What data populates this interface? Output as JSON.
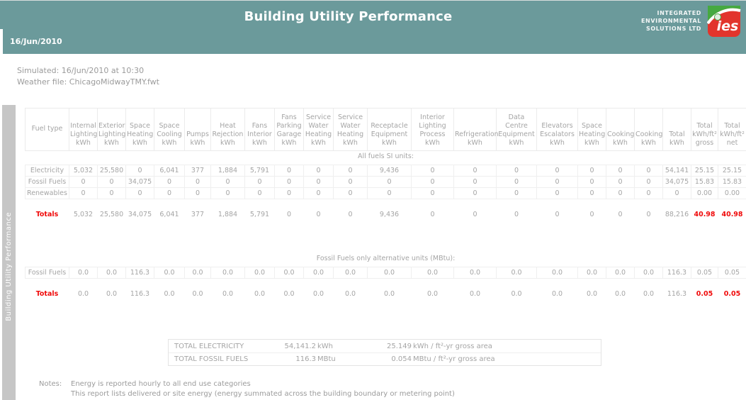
{
  "header": {
    "title": "Building Utility Performance",
    "date": "16/Jun/2010",
    "logo": {
      "company_lines": [
        "INTEGRATED",
        "ENVIRONMENTAL",
        "SOLUTIONS LTD"
      ],
      "mark_text": "ies"
    }
  },
  "sidebar": {
    "tab_label": "Building Utility Performance"
  },
  "meta": {
    "simulated": "Simulated: 16/Jun/2010 at 10:30",
    "weather_file": "Weather file: ChicagoMidwayTMY.fwt"
  },
  "table": {
    "columns": [
      "Fuel type",
      "Internal\nLighting\nkWh",
      "Exterior\nLighting\nkWh",
      "Space\nHeating\nkWh",
      "Space\nCooling\nkWh",
      "Pumps\nkWh",
      "Heat\nRejection\nkWh",
      "Fans\nInterior\nkWh",
      "Fans\nParking\nGarage\nkWh",
      "Service\nWater\nHeating\nkWh",
      "Service\nWater\nHeating\nkWh",
      "Receptacle\nEquipment\nkWh",
      "Interior\nLighting\nProcess\nkWh",
      "Refrigeration\nkWh",
      "Data\nCentre\nEquipment\nkWh",
      "Elevators\nEscalators\nkWh",
      "Space\nHeating\nkWh",
      "Cooking\nkWh",
      "Cooking\nkWh",
      "Total\nkWh",
      "Total\nkWh/ft²\ngross",
      "Total\nkWh/ft²\nnet"
    ],
    "sections": [
      {
        "label": "All fuels SI units:",
        "rows": [
          {
            "label": "Electricity",
            "values": [
              "5,032",
              "25,580",
              "0",
              "6,041",
              "377",
              "1,884",
              "5,791",
              "0",
              "0",
              "0",
              "9,436",
              "0",
              "0",
              "0",
              "0",
              "0",
              "0",
              "0",
              "54,141",
              "25.15",
              "25.15"
            ]
          },
          {
            "label": "Fossil Fuels",
            "values": [
              "0",
              "0",
              "34,075",
              "0",
              "0",
              "0",
              "0",
              "0",
              "0",
              "0",
              "0",
              "0",
              "0",
              "0",
              "0",
              "0",
              "0",
              "0",
              "34,075",
              "15.83",
              "15.83"
            ]
          },
          {
            "label": "Renewables",
            "values": [
              "0",
              "0",
              "0",
              "0",
              "0",
              "0",
              "0",
              "0",
              "0",
              "0",
              "0",
              "0",
              "0",
              "0",
              "0",
              "0",
              "0",
              "0",
              "0",
              "0.00",
              "0.00"
            ]
          }
        ],
        "totals": {
          "label": "Totals",
          "values": [
            "5,032",
            "25,580",
            "34,075",
            "6,041",
            "377",
            "1,884",
            "5,791",
            "0",
            "0",
            "0",
            "9,436",
            "0",
            "0",
            "0",
            "0",
            "0",
            "0",
            "0",
            "88,216",
            "40.98",
            "40.98"
          ],
          "red_value_indices": [
            19,
            20
          ]
        }
      },
      {
        "label": "Fossil Fuels only alternative units (MBtu):",
        "rows": [
          {
            "label": "Fossil Fuels",
            "values": [
              "0.0",
              "0.0",
              "116.3",
              "0.0",
              "0.0",
              "0.0",
              "0.0",
              "0.0",
              "0.0",
              "0.0",
              "0.0",
              "0.0",
              "0.0",
              "0.0",
              "0.0",
              "0.0",
              "0.0",
              "0.0",
              "116.3",
              "0.05",
              "0.05"
            ]
          }
        ],
        "totals": {
          "label": "Totals",
          "values": [
            "0.0",
            "0.0",
            "116.3",
            "0.0",
            "0.0",
            "0.0",
            "0.0",
            "0.0",
            "0.0",
            "0.0",
            "0.0",
            "0.0",
            "0.0",
            "0.0",
            "0.0",
            "0.0",
            "0.0",
            "0.0",
            "116.3",
            "0.05",
            "0.05"
          ],
          "red_value_indices": [
            19,
            20
          ]
        }
      }
    ]
  },
  "summary": {
    "rows": [
      {
        "label": "TOTAL ELECTRICITY",
        "value": "54,141.2",
        "unit": "kWh",
        "rate": "25.149",
        "rate_unit": "kWh / ft²-yr gross area"
      },
      {
        "label": "TOTAL FOSSIL FUELS",
        "value": "116.3",
        "unit": "MBtu",
        "rate": "0.054",
        "rate_unit": "MBtu / ft²-yr gross area"
      }
    ]
  },
  "notes": {
    "label": "Notes:",
    "lines": [
      "Energy is reported hourly to all end use categories",
      "This report lists delivered or site energy (energy summated across the building boundary or metering point)"
    ]
  },
  "colors": {
    "header_teal": "#6b9a9b",
    "logo_red": "#e2342c",
    "logo_green": "#46a940",
    "text_gray": "#a5a5a5",
    "accent_red": "#f00a0a",
    "sidebar_gray": "#c6c6c6",
    "border_gray": "#ebebeb"
  }
}
